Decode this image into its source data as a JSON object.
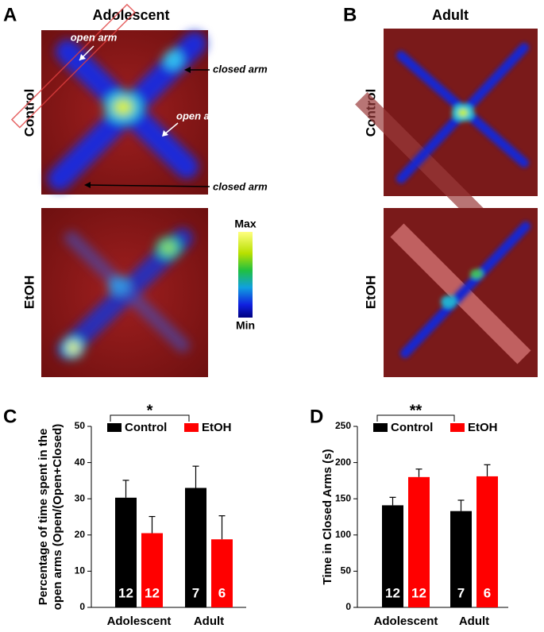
{
  "heatmaps": {
    "panel_a": "A",
    "panel_b": "B",
    "title_a": "Adolescent",
    "title_b": "Adult",
    "row_control": "Control",
    "row_etoh": "EtOH",
    "annotations": [
      "open arm",
      "closed arm",
      "open arm",
      "closed arm"
    ],
    "scale_max": "Max",
    "scale_min": "Min"
  },
  "chart_data": [
    {
      "type": "bar",
      "panel": "C",
      "ylabel": [
        "Percentage of time spent in the",
        "open arms (Open/(Open+Closed)"
      ],
      "categories": [
        "Adolescent",
        "Adult"
      ],
      "series": [
        {
          "name": "Control",
          "color": "#000000",
          "values": [
            30.3,
            33
          ],
          "errors": [
            4.8,
            6
          ],
          "n": [
            12,
            7
          ]
        },
        {
          "name": "EtOH",
          "color": "#ff0000",
          "values": [
            20.5,
            18.8
          ],
          "errors": [
            4.6,
            6.5
          ],
          "n": [
            12,
            6
          ]
        }
      ],
      "significance": "*",
      "ylim": [
        0,
        50
      ],
      "yticks": [
        0,
        10,
        20,
        30,
        40,
        50
      ]
    },
    {
      "type": "bar",
      "panel": "D",
      "ylabel": [
        "Time in Closed Arms (s)"
      ],
      "categories": [
        "Adolescent",
        "Adult"
      ],
      "series": [
        {
          "name": "Control",
          "color": "#000000",
          "values": [
            141,
            133
          ],
          "errors": [
            11,
            15
          ],
          "n": [
            12,
            7
          ]
        },
        {
          "name": "EtOH",
          "color": "#ff0000",
          "values": [
            180,
            181
          ],
          "errors": [
            11,
            16
          ],
          "n": [
            12,
            6
          ]
        }
      ],
      "significance": "**",
      "ylim": [
        0,
        250
      ],
      "yticks": [
        0,
        50,
        100,
        150,
        200,
        250
      ]
    }
  ]
}
